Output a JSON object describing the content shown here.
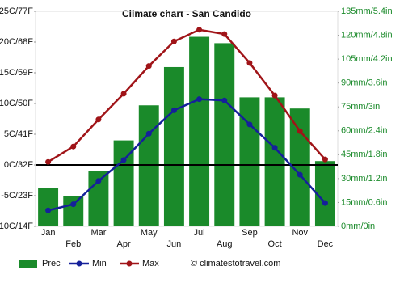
{
  "chart_data": {
    "type": "combo",
    "title": "Climate chart - San Candido",
    "categories": [
      "Jan",
      "Feb",
      "Mar",
      "Apr",
      "May",
      "Jun",
      "Jul",
      "Aug",
      "Sep",
      "Oct",
      "Nov",
      "Dec"
    ],
    "series": [
      {
        "name": "Prec",
        "type": "bar",
        "axis": "y2",
        "color": "#1a8a2a",
        "values": [
          24,
          19,
          35,
          54,
          76,
          100,
          119,
          115,
          81,
          81,
          74,
          41
        ]
      },
      {
        "name": "Min",
        "type": "line",
        "color": "#15209a",
        "values": [
          -7.4,
          -6.4,
          -2.6,
          0.8,
          5.1,
          8.9,
          10.7,
          10.5,
          6.6,
          2.8,
          -1.6,
          -6.2
        ]
      },
      {
        "name": "Max",
        "type": "line",
        "color": "#a01418",
        "values": [
          0.5,
          3.0,
          7.4,
          11.6,
          16.1,
          20.1,
          22.0,
          21.3,
          16.6,
          11.3,
          5.5,
          0.9
        ]
      }
    ],
    "ylim": [
      -10,
      25
    ],
    "yticks": [
      {
        "value": -10,
        "label": "-10C/14F"
      },
      {
        "value": -5,
        "label": "-5C/23F"
      },
      {
        "value": 0,
        "label": "0C/32F"
      },
      {
        "value": 5,
        "label": "5C/41F"
      },
      {
        "value": 10,
        "label": "10C/50F"
      },
      {
        "value": 15,
        "label": "15C/59F"
      },
      {
        "value": 20,
        "label": "20C/68F"
      },
      {
        "value": 25,
        "label": "25C/77F"
      }
    ],
    "y2lim": [
      0,
      135
    ],
    "y2ticks": [
      {
        "value": 0,
        "label": "0mm/0in"
      },
      {
        "value": 15,
        "label": "15mm/0.6in"
      },
      {
        "value": 30,
        "label": "30mm/1.2in"
      },
      {
        "value": 45,
        "label": "45mm/1.8in"
      },
      {
        "value": 60,
        "label": "60mm/2.4in"
      },
      {
        "value": 75,
        "label": "75mm/3in"
      },
      {
        "value": 90,
        "label": "90mm/3.6in"
      },
      {
        "value": 105,
        "label": "105mm/4.2in"
      },
      {
        "value": 120,
        "label": "120mm/4.8in"
      },
      {
        "value": 135,
        "label": "135mm/5.4in"
      }
    ],
    "grid": false,
    "credit": "© climatestotravel.com"
  }
}
